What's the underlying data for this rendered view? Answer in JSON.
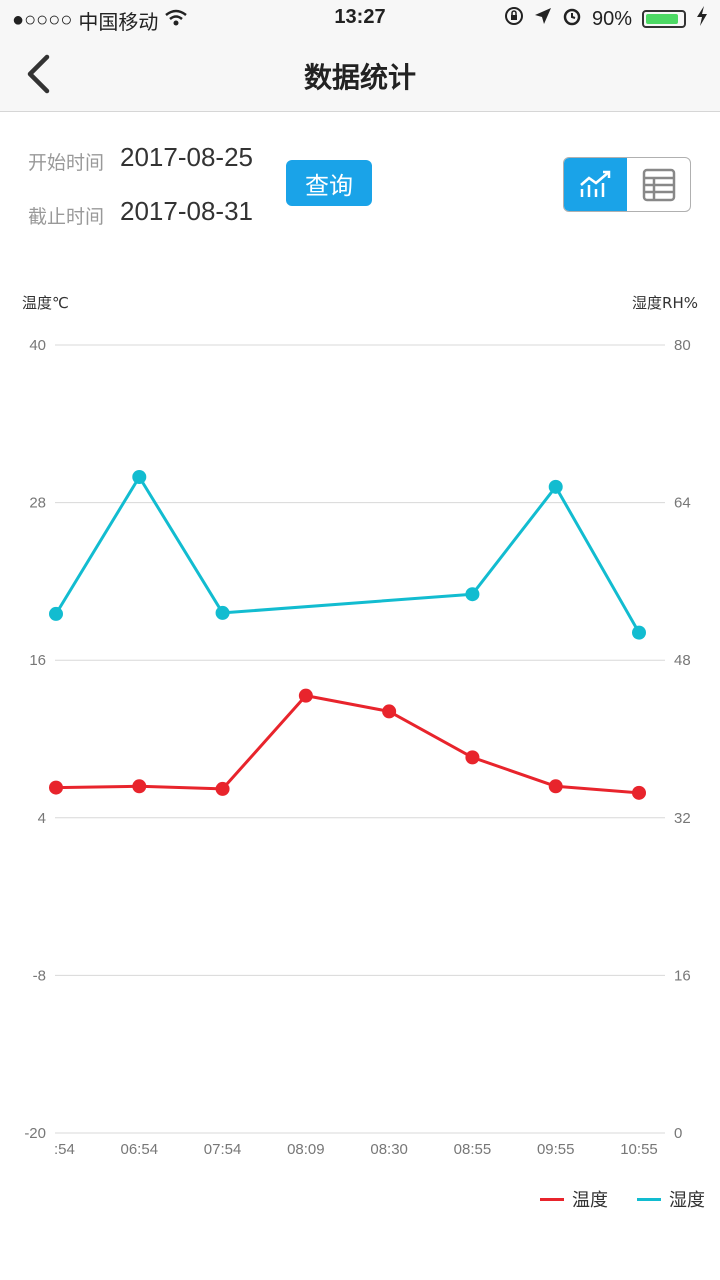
{
  "status_bar": {
    "signal": "●○○○○",
    "carrier": "中国移动",
    "time": "13:27",
    "battery": "90%",
    "battery_level": 0.9
  },
  "nav": {
    "title": "数据统计",
    "back_icon": "chevron-left-icon"
  },
  "query": {
    "start_label": "开始时间",
    "start_date": "2017-08-25",
    "end_label": "截止时间",
    "end_date": "2017-08-31",
    "button_label": "查询",
    "view_modes": [
      {
        "name": "chart-icon",
        "active": true
      },
      {
        "name": "table-icon",
        "active": false
      }
    ]
  },
  "colors": {
    "accent": "#1aa3e8",
    "temperature": "#e8242c",
    "humidity": "#12bcd0"
  },
  "chart_data": {
    "type": "line",
    "x": [
      ":54",
      "06:54",
      "07:54",
      "08:09",
      "08:30",
      "08:55",
      "09:55",
      "10:55"
    ],
    "left_axis": {
      "label": "温度℃",
      "ticks": [
        40,
        28,
        16,
        4,
        -8,
        -20
      ],
      "range": [
        -20,
        40
      ]
    },
    "right_axis": {
      "label": "湿度RH%",
      "ticks": [
        80,
        64,
        48,
        32,
        16,
        0
      ],
      "range": [
        0,
        80
      ]
    },
    "grid": true,
    "legend_position": "bottom-right",
    "series": [
      {
        "name": "温度",
        "axis": "left",
        "values": [
          6.3,
          6.4,
          6.2,
          13.3,
          12.1,
          8.6,
          6.4,
          5.9
        ]
      },
      {
        "name": "湿度",
        "axis": "right",
        "values": [
          52.7,
          66.6,
          52.8,
          null,
          null,
          54.7,
          65.6,
          50.8
        ]
      }
    ]
  }
}
